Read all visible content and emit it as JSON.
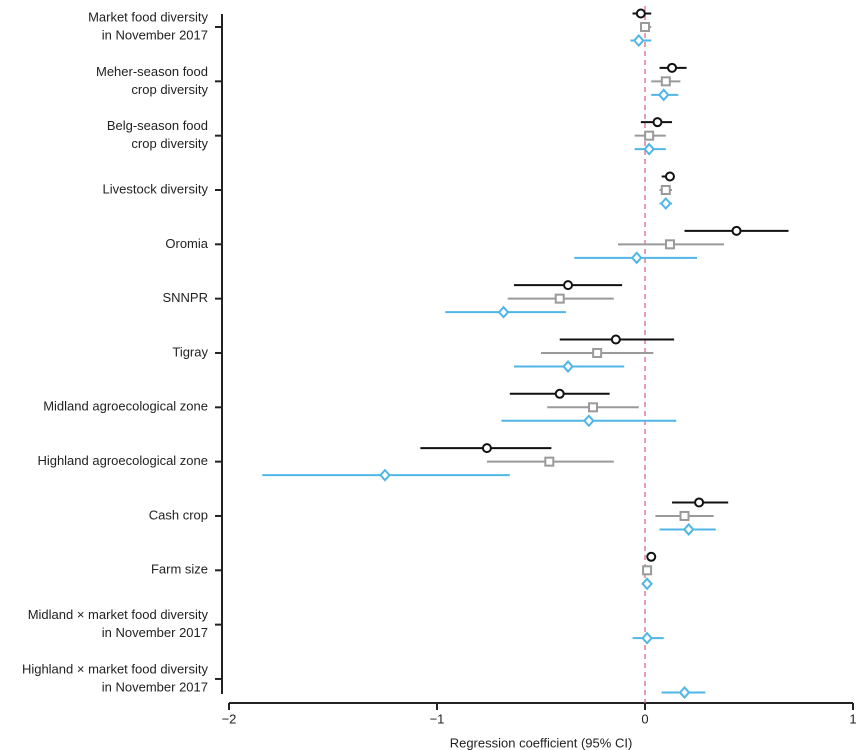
{
  "chart_data": {
    "type": "forest",
    "categories": [
      [
        "Market food diversity",
        "in November 2017"
      ],
      [
        "Meher-season food",
        "crop diversity"
      ],
      [
        "Belg-season food",
        "crop diversity"
      ],
      [
        "Livestock diversity"
      ],
      [
        "Oromia"
      ],
      [
        "SNNPR"
      ],
      [
        "Tigray"
      ],
      [
        "Midland agroecological zone"
      ],
      [
        "Highland agroecological zone"
      ],
      [
        "Cash crop"
      ],
      [
        "Farm size"
      ],
      [
        "Midland × market food diversity",
        "in November 2017"
      ],
      [
        "Highland × market food diversity",
        "in November 2017"
      ]
    ],
    "series": [
      {
        "color": "#111111",
        "marker": "circle",
        "values": [
          -0.02,
          0.13,
          0.06,
          0.12,
          0.44,
          -0.37,
          -0.14,
          -0.41,
          -0.76,
          0.26,
          0.03,
          null,
          null
        ],
        "lower": [
          -0.06,
          0.07,
          -0.02,
          0.08,
          0.19,
          -0.63,
          -0.41,
          -0.65,
          -1.08,
          0.13,
          0.02,
          null,
          null
        ],
        "upper": [
          0.03,
          0.2,
          0.13,
          0.14,
          0.69,
          -0.11,
          0.14,
          -0.17,
          -0.45,
          0.4,
          0.04,
          null,
          null
        ]
      },
      {
        "color": "#9a9a9a",
        "marker": "square",
        "values": [
          0.0,
          0.1,
          0.02,
          0.1,
          0.12,
          -0.41,
          -0.23,
          -0.25,
          -0.46,
          0.19,
          0.01,
          null,
          null
        ],
        "lower": [
          -0.02,
          0.03,
          -0.05,
          0.07,
          -0.13,
          -0.66,
          -0.5,
          -0.47,
          -0.76,
          0.05,
          0.0,
          null,
          null
        ],
        "upper": [
          0.03,
          0.17,
          0.1,
          0.13,
          0.38,
          -0.15,
          0.04,
          -0.03,
          -0.15,
          0.33,
          0.02,
          null,
          null
        ]
      },
      {
        "color": "#4fb6e6",
        "marker": "diamond",
        "values": [
          -0.03,
          0.09,
          0.02,
          0.1,
          -0.04,
          -0.68,
          -0.37,
          -0.27,
          -1.25,
          0.21,
          0.01,
          0.01,
          0.19
        ],
        "lower": [
          -0.07,
          0.03,
          -0.05,
          0.07,
          -0.34,
          -0.96,
          -0.63,
          -0.69,
          -1.84,
          0.07,
          0.0,
          -0.06,
          0.08
        ],
        "upper": [
          0.03,
          0.16,
          0.1,
          0.13,
          0.25,
          -0.38,
          -0.1,
          0.15,
          -0.65,
          0.34,
          0.02,
          0.09,
          0.29
        ]
      }
    ],
    "xlim": [
      -2,
      1
    ],
    "xticks": [
      {
        "value": -2,
        "label": "−2"
      },
      {
        "value": -1,
        "label": "−1"
      },
      0,
      1
    ],
    "reference_line": 0,
    "xlabel": "Regression coefficient (95% CI)"
  }
}
